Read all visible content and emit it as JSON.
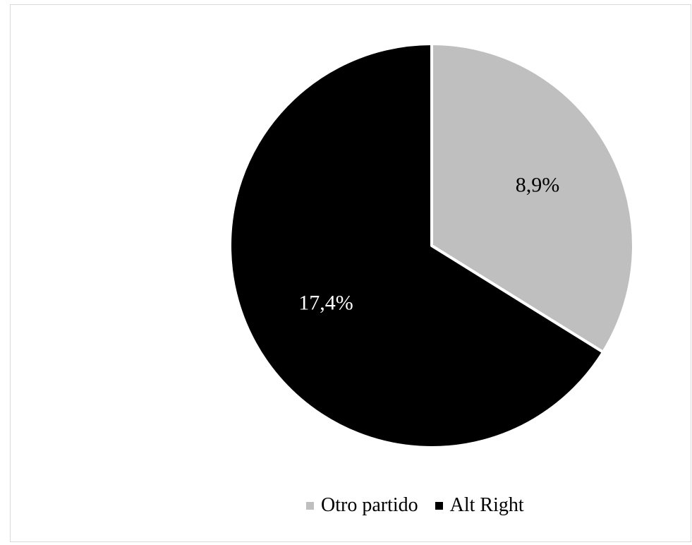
{
  "chart_data": {
    "type": "pie",
    "title": "",
    "labels": [
      "Otro partido",
      "Alt Right"
    ],
    "values": [
      8.9,
      17.4
    ],
    "data_labels": [
      "8,9%",
      "17,4%"
    ],
    "colors": [
      "#bfbfbf",
      "#000000"
    ],
    "label_colors": [
      "#000000",
      "#ffffff"
    ],
    "start_angle": "12 o'clock",
    "direction": "clockwise",
    "legend_position": "bottom"
  }
}
